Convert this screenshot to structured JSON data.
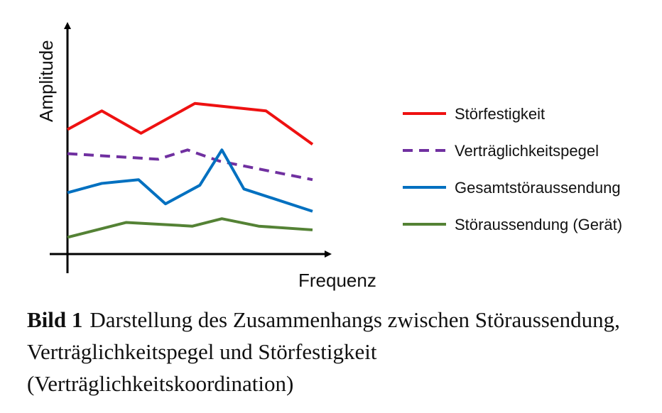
{
  "chart_data": {
    "type": "line",
    "xlabel": "Frequenz",
    "ylabel": "Amplitude",
    "x": [
      0,
      1,
      2,
      3,
      4,
      5,
      6,
      7,
      8,
      9,
      10
    ],
    "ylim": [
      0,
      100
    ],
    "legend_position": "right",
    "grid": false,
    "series": [
      {
        "name": "Störfestigkeit",
        "color": "#ee1111",
        "style": "solid",
        "x": [
          0,
          1.4,
          3.0,
          5.2,
          8.1,
          10
        ],
        "values": [
          67,
          77,
          65,
          81,
          77,
          59
        ]
      },
      {
        "name": "Verträglichkeitspegel",
        "color": "#7030a0",
        "style": "dashed",
        "x": [
          0,
          3.7,
          4.9,
          6.2,
          10
        ],
        "values": [
          54,
          51,
          56,
          50,
          40
        ]
      },
      {
        "name": "Gesamtstöraussendung",
        "color": "#0070c0",
        "style": "solid",
        "x": [
          0,
          1.4,
          2.9,
          4.0,
          5.4,
          6.3,
          7.2,
          10
        ],
        "values": [
          33,
          38,
          40,
          27,
          37,
          56,
          35,
          23
        ]
      },
      {
        "name": "Störaussendung (Gerät)",
        "color": "#548235",
        "style": "solid",
        "x": [
          0,
          2.4,
          5.1,
          6.3,
          7.8,
          10
        ],
        "values": [
          9,
          17,
          15,
          19,
          15,
          13
        ]
      }
    ]
  },
  "caption": {
    "label": "Bild 1",
    "text": "Darstellung des Zusammenhangs zwischen Störaussendung, Verträglichkeitspegel und Störfestigkeit (Verträglichkeitskoordination)"
  }
}
